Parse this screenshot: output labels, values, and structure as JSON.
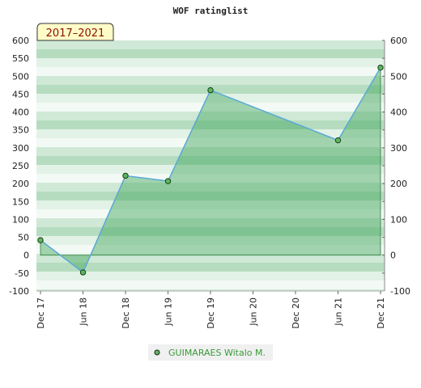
{
  "chart_data": {
    "type": "area",
    "title": "WOF ratinglist",
    "badge": "2017–2021",
    "x": [
      "Dec 17",
      "Jun 18",
      "Dec 18",
      "Jun 19",
      "Dec 19",
      "Jun 21",
      "Dec 21"
    ],
    "x_ticks": [
      "Dec 17",
      "Jun 18",
      "Dec 18",
      "Jun 19",
      "Dec 19",
      "Jun 20",
      "Dec 20",
      "Jun 21",
      "Dec 21"
    ],
    "ylim": [
      -100,
      600
    ],
    "y_ticks": [
      -100,
      -50,
      0,
      50,
      100,
      150,
      200,
      250,
      300,
      350,
      400,
      450,
      500,
      550,
      600
    ],
    "y_ticks_right": [
      -100,
      0,
      100,
      200,
      300,
      400,
      500,
      600
    ],
    "series": [
      {
        "name": "GUIMARAES Witalo M.",
        "values": [
          42,
          -48,
          222,
          207,
          461,
          321,
          524
        ]
      }
    ],
    "colors": {
      "line": "#5aa9d6",
      "fill": "#3fa55a",
      "marker": "#5cb85c",
      "badge_bg": "#fffcc8",
      "legend_text": "#3a9a3a"
    },
    "legend": "bottom-center",
    "grid": true
  }
}
